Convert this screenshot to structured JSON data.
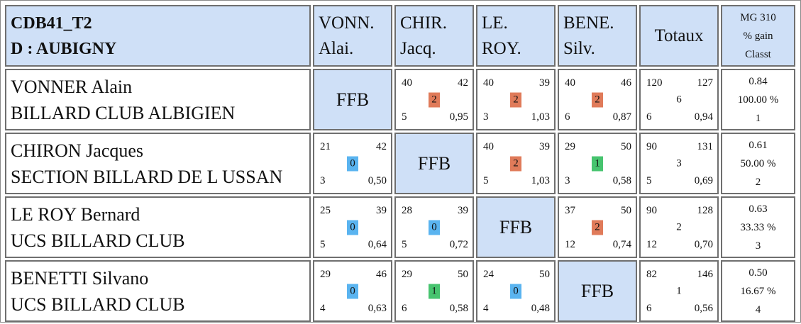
{
  "header": {
    "title_line1": "CDB41_T2",
    "title_line2": "D : AUBIGNY",
    "columns": [
      {
        "line1": "VONN.",
        "line2": "Alai."
      },
      {
        "line1": "CHIR.",
        "line2": "Jacq."
      },
      {
        "line1": "LE.",
        "line2": "ROY."
      },
      {
        "line1": "BENE.",
        "line2": "Silv."
      }
    ],
    "totals_label": "Totaux",
    "stats_line1": "MG 310",
    "stats_line2": "% gain",
    "stats_line3": "Classt"
  },
  "colors": {
    "header_bg": "#cfe0f7",
    "win_badge": "#e07b5a",
    "draw_badge": "#47c46f",
    "loss_badge": "#5ab4f0"
  },
  "rows": [
    {
      "name": "VONNER Alain",
      "club": "BILLARD CLUB ALBIGIEN",
      "cells": [
        {
          "self": "FFB"
        },
        {
          "tl": "40",
          "tr": "42",
          "pts": "2",
          "bl": "5",
          "br": "0,95"
        },
        {
          "tl": "40",
          "tr": "39",
          "pts": "2",
          "bl": "3",
          "br": "1,03"
        },
        {
          "tl": "40",
          "tr": "46",
          "pts": "2",
          "bl": "6",
          "br": "0,87"
        }
      ],
      "totals": {
        "tl": "120",
        "tr": "127",
        "mid": "6",
        "bl": "6",
        "br": "0,94"
      },
      "stats": {
        "mg": "0.84",
        "pct": "100.00 %",
        "rank": "1"
      }
    },
    {
      "name": "CHIRON Jacques",
      "club": "SECTION BILLARD DE L USSAN",
      "cells": [
        {
          "tl": "21",
          "tr": "42",
          "pts": "0",
          "bl": "3",
          "br": "0,50"
        },
        {
          "self": "FFB"
        },
        {
          "tl": "40",
          "tr": "39",
          "pts": "2",
          "bl": "5",
          "br": "1,03"
        },
        {
          "tl": "29",
          "tr": "50",
          "pts": "1",
          "bl": "3",
          "br": "0,58"
        }
      ],
      "totals": {
        "tl": "90",
        "tr": "131",
        "mid": "3",
        "bl": "5",
        "br": "0,69"
      },
      "stats": {
        "mg": "0.61",
        "pct": "50.00 %",
        "rank": "2"
      }
    },
    {
      "name": "LE ROY Bernard",
      "club": "UCS BILLARD CLUB",
      "cells": [
        {
          "tl": "25",
          "tr": "39",
          "pts": "0",
          "bl": "5",
          "br": "0,64"
        },
        {
          "tl": "28",
          "tr": "39",
          "pts": "0",
          "bl": "5",
          "br": "0,72"
        },
        {
          "self": "FFB"
        },
        {
          "tl": "37",
          "tr": "50",
          "pts": "2",
          "bl": "12",
          "br": "0,74"
        }
      ],
      "totals": {
        "tl": "90",
        "tr": "128",
        "mid": "2",
        "bl": "12",
        "br": "0,70"
      },
      "stats": {
        "mg": "0.63",
        "pct": "33.33 %",
        "rank": "3"
      }
    },
    {
      "name": "BENETTI Silvano",
      "club": "UCS BILLARD CLUB",
      "cells": [
        {
          "tl": "29",
          "tr": "46",
          "pts": "0",
          "bl": "4",
          "br": "0,63"
        },
        {
          "tl": "29",
          "tr": "50",
          "pts": "1",
          "bl": "6",
          "br": "0,58"
        },
        {
          "tl": "24",
          "tr": "50",
          "pts": "0",
          "bl": "4",
          "br": "0,48"
        },
        {
          "self": "FFB"
        }
      ],
      "totals": {
        "tl": "82",
        "tr": "146",
        "mid": "1",
        "bl": "6",
        "br": "0,56"
      },
      "stats": {
        "mg": "0.50",
        "pct": "16.67 %",
        "rank": "4"
      }
    }
  ]
}
